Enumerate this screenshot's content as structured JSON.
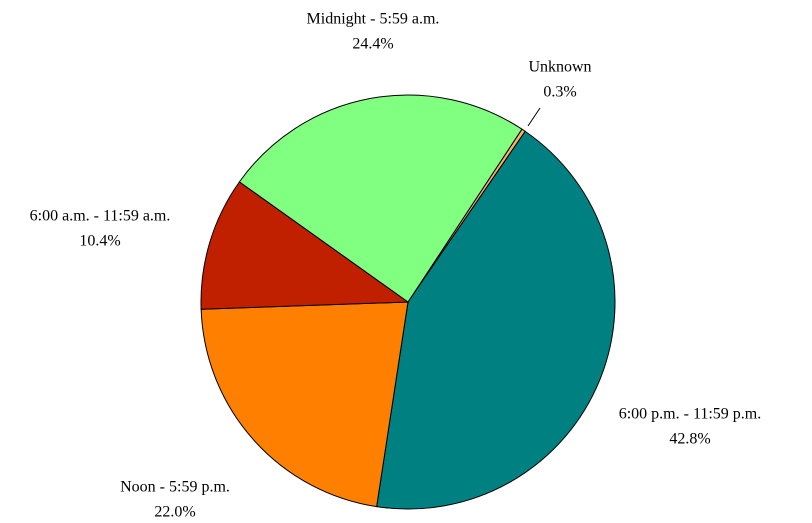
{
  "chart_data": {
    "type": "pie",
    "categories": [
      "Unknown",
      "6:00 p.m. - 11:59 p.m.",
      "Noon - 5:59 p.m.",
      "6:00 a.m. - 11:59 a.m.",
      "Midnight - 5:59 a.m."
    ],
    "values": [
      0.3,
      42.8,
      22.0,
      10.4,
      24.4
    ],
    "value_labels": [
      "0.3%",
      "42.8%",
      "22.0%",
      "10.4%",
      "24.4%"
    ],
    "colors": [
      "#FFB060",
      "#008080",
      "#FF8000",
      "#C02000",
      "#80FF80"
    ]
  }
}
